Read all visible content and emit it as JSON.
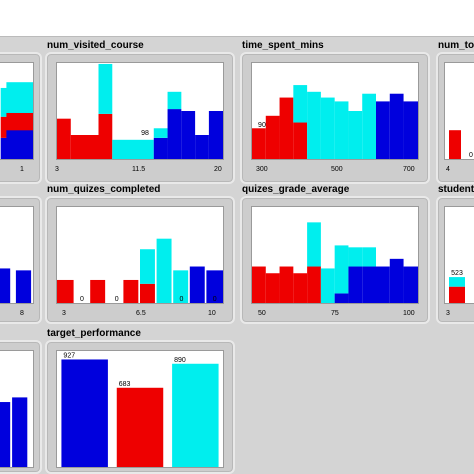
{
  "colors": {
    "blue": "#0000dd",
    "red": "#ee0000",
    "cyan": "#00eeee"
  },
  "panels": [
    {
      "id": "p0",
      "title": "",
      "ticks": [
        "1"
      ],
      "chart_data": {
        "type": "bar",
        "stacked": true,
        "ylim": [
          0,
          100
        ],
        "stacks": [
          {
            "x": 0.15,
            "w": 0.85,
            "b": 22,
            "r": 22,
            "c": 30
          },
          {
            "x": 0.3,
            "w": 0.7,
            "b": 30,
            "r": 18,
            "c": 32
          }
        ],
        "labels": []
      }
    },
    {
      "id": "p1",
      "title": "num_visited_course",
      "ticks": [
        "3",
        "11.5",
        "20"
      ],
      "chart_data": {
        "type": "bar",
        "stacked": true,
        "ylim": [
          0,
          100
        ],
        "stacks": [
          {
            "x": 0.0,
            "w": 0.083,
            "b": 0,
            "r": 42,
            "c": 0
          },
          {
            "x": 0.083,
            "w": 0.167,
            "b": 0,
            "r": 25,
            "c": 0
          },
          {
            "x": 0.25,
            "w": 0.083,
            "b": 0,
            "r": 47,
            "c": 52
          },
          {
            "x": 0.333,
            "w": 0.167,
            "b": 0,
            "r": 0,
            "c": 20
          },
          {
            "x": 0.5,
            "w": 0.083,
            "b": 0,
            "r": 0,
            "c": 20
          },
          {
            "x": 0.583,
            "w": 0.083,
            "b": 22,
            "r": 0,
            "c": 10
          },
          {
            "x": 0.666,
            "w": 0.083,
            "b": 52,
            "r": 0,
            "c": 18
          },
          {
            "x": 0.749,
            "w": 0.083,
            "b": 50,
            "r": 0,
            "c": 0
          },
          {
            "x": 0.832,
            "w": 0.083,
            "b": 25,
            "r": 0,
            "c": 0
          },
          {
            "x": 0.915,
            "w": 0.085,
            "b": 50,
            "r": 0,
            "c": 0
          }
        ],
        "labels": [
          {
            "text": "98",
            "x": 0.53,
            "v": 23
          }
        ]
      }
    },
    {
      "id": "p2",
      "title": "time_spent_mins",
      "ticks": [
        "300",
        "500",
        "700"
      ],
      "chart_data": {
        "type": "bar",
        "stacked": true,
        "ylim": [
          0,
          100
        ],
        "stacks": [
          {
            "x": 0.0,
            "w": 0.083,
            "b": 0,
            "r": 32,
            "c": 0
          },
          {
            "x": 0.083,
            "w": 0.083,
            "b": 0,
            "r": 45,
            "c": 0
          },
          {
            "x": 0.166,
            "w": 0.083,
            "b": 0,
            "r": 64,
            "c": 0
          },
          {
            "x": 0.249,
            "w": 0.083,
            "b": 0,
            "r": 38,
            "c": 39
          },
          {
            "x": 0.332,
            "w": 0.083,
            "b": 0,
            "r": 0,
            "c": 70
          },
          {
            "x": 0.415,
            "w": 0.083,
            "b": 0,
            "r": 0,
            "c": 64
          },
          {
            "x": 0.498,
            "w": 0.083,
            "b": 0,
            "r": 0,
            "c": 60
          },
          {
            "x": 0.581,
            "w": 0.083,
            "b": 0,
            "r": 0,
            "c": 50
          },
          {
            "x": 0.664,
            "w": 0.083,
            "b": 0,
            "r": 0,
            "c": 68
          },
          {
            "x": 0.747,
            "w": 0.083,
            "b": 60,
            "r": 0,
            "c": 0
          },
          {
            "x": 0.83,
            "w": 0.083,
            "b": 68,
            "r": 0,
            "c": 0
          },
          {
            "x": 0.913,
            "w": 0.087,
            "b": 60,
            "r": 0,
            "c": 0
          }
        ],
        "labels": [
          {
            "text": "90",
            "x": 0.06,
            "v": 31
          }
        ]
      }
    },
    {
      "id": "p3",
      "title": "num_to",
      "ticks": [
        "4"
      ],
      "chart_data": {
        "type": "bar",
        "stacked": true,
        "ylim": [
          0,
          100
        ],
        "stacks": [
          {
            "x": 0.1,
            "w": 0.3,
            "b": 0,
            "r": 30,
            "c": 0
          }
        ],
        "labels": [
          {
            "text": "0",
            "x": 0.65,
            "v": 0
          }
        ]
      }
    },
    {
      "id": "p4",
      "title": "",
      "ticks": [
        "8"
      ],
      "chart_data": {
        "type": "bar",
        "stacked": true,
        "ylim": [
          0,
          100
        ],
        "stacks": [
          {
            "x": 0.0,
            "w": 0.4,
            "b": 36,
            "r": 0,
            "c": 0
          },
          {
            "x": 0.55,
            "w": 0.4,
            "b": 34,
            "r": 0,
            "c": 0
          }
        ],
        "labels": []
      }
    },
    {
      "id": "p5",
      "title": "num_quizes_completed",
      "ticks": [
        "3",
        "6.5",
        "10"
      ],
      "chart_data": {
        "type": "bar",
        "stacked": true,
        "ylim": [
          0,
          100
        ],
        "stacks": [
          {
            "x": 0.0,
            "w": 0.1,
            "b": 0,
            "r": 24,
            "c": 0
          },
          {
            "x": 0.2,
            "w": 0.09,
            "b": 0,
            "r": 24,
            "c": 0
          },
          {
            "x": 0.4,
            "w": 0.09,
            "b": 0,
            "r": 24,
            "c": 0
          },
          {
            "x": 0.5,
            "w": 0.09,
            "b": 0,
            "r": 20,
            "c": 36
          },
          {
            "x": 0.6,
            "w": 0.09,
            "b": 0,
            "r": 0,
            "c": 67
          },
          {
            "x": 0.7,
            "w": 0.09,
            "b": 0,
            "r": 0,
            "c": 34
          },
          {
            "x": 0.8,
            "w": 0.09,
            "b": 38,
            "r": 0,
            "c": 0
          },
          {
            "x": 0.9,
            "w": 0.1,
            "b": 34,
            "r": 0,
            "c": 0
          }
        ],
        "labels": [
          {
            "text": "0",
            "x": 0.15,
            "v": 0
          },
          {
            "text": "0",
            "x": 0.36,
            "v": 0
          },
          {
            "text": "0",
            "x": 0.75,
            "v": 0
          },
          {
            "text": "0",
            "x": 0.95,
            "v": 0
          }
        ]
      }
    },
    {
      "id": "p6",
      "title": "quizes_grade_average",
      "ticks": [
        "50",
        "75",
        "100"
      ],
      "chart_data": {
        "type": "bar",
        "stacked": true,
        "ylim": [
          0,
          100
        ],
        "stacks": [
          {
            "x": 0.0,
            "w": 0.083,
            "b": 0,
            "r": 38,
            "c": 0
          },
          {
            "x": 0.083,
            "w": 0.083,
            "b": 0,
            "r": 31,
            "c": 0
          },
          {
            "x": 0.166,
            "w": 0.083,
            "b": 0,
            "r": 38,
            "c": 0
          },
          {
            "x": 0.249,
            "w": 0.083,
            "b": 0,
            "r": 31,
            "c": 0
          },
          {
            "x": 0.332,
            "w": 0.083,
            "b": 0,
            "r": 38,
            "c": 46
          },
          {
            "x": 0.415,
            "w": 0.083,
            "b": 0,
            "r": 0,
            "c": 36
          },
          {
            "x": 0.498,
            "w": 0.083,
            "b": 10,
            "r": 0,
            "c": 50
          },
          {
            "x": 0.581,
            "w": 0.083,
            "b": 38,
            "r": 0,
            "c": 20
          },
          {
            "x": 0.664,
            "w": 0.083,
            "b": 38,
            "r": 0,
            "c": 20
          },
          {
            "x": 0.747,
            "w": 0.083,
            "b": 38,
            "r": 0,
            "c": 0
          },
          {
            "x": 0.83,
            "w": 0.083,
            "b": 46,
            "r": 0,
            "c": 0
          },
          {
            "x": 0.913,
            "w": 0.087,
            "b": 38,
            "r": 0,
            "c": 0
          }
        ],
        "labels": []
      }
    },
    {
      "id": "p7",
      "title": "student",
      "ticks": [
        "3"
      ],
      "chart_data": {
        "type": "bar",
        "stacked": true,
        "ylim": [
          0,
          100
        ],
        "stacks": [
          {
            "x": 0.1,
            "w": 0.4,
            "b": 0,
            "r": 17,
            "c": 10
          }
        ],
        "labels": [
          {
            "text": "523",
            "x": 0.3,
            "v": 27
          }
        ]
      }
    },
    {
      "id": "p8",
      "title": "",
      "ticks": [],
      "chart_data": {
        "type": "bar",
        "stacked": true,
        "ylim": [
          0,
          100
        ],
        "stacks": [
          {
            "x": 0.05,
            "w": 0.35,
            "b": 56,
            "r": 0,
            "c": 0
          },
          {
            "x": 0.45,
            "w": 0.4,
            "b": 60,
            "r": 0,
            "c": 0
          }
        ],
        "labels": []
      }
    },
    {
      "id": "p9",
      "title": "target_performance",
      "ticks": [],
      "chart_data": {
        "type": "bar",
        "ylim": [
          0,
          1000
        ],
        "categories": [
          "",
          "",
          ""
        ],
        "values": [
          927,
          683,
          890
        ],
        "value_labels": [
          "927",
          "683",
          "890"
        ],
        "bar_colors": [
          "blue",
          "red",
          "cyan"
        ]
      }
    }
  ]
}
